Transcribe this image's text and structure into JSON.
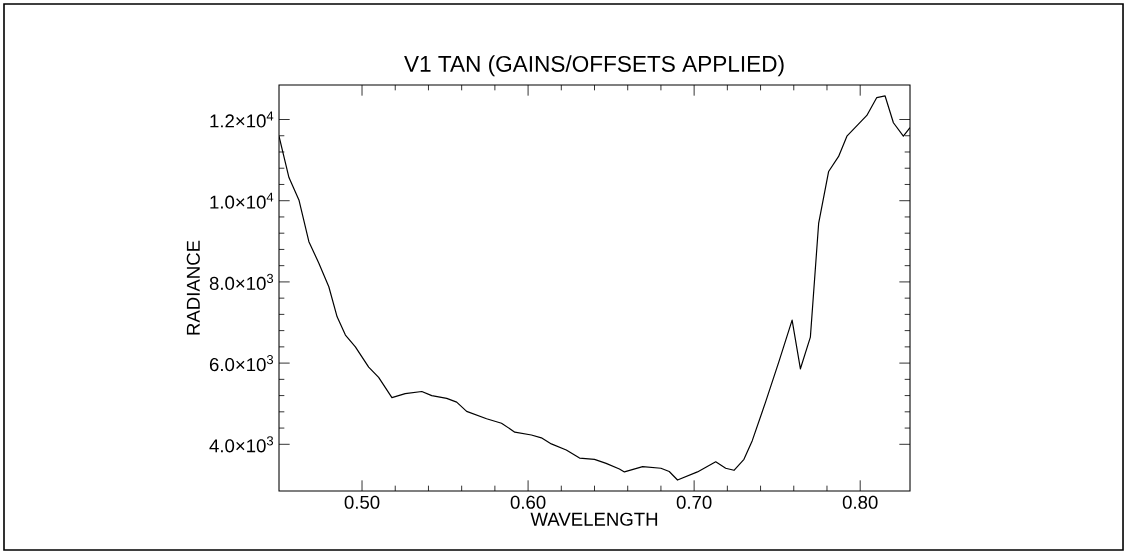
{
  "chart_data": {
    "type": "line",
    "title": "V1 TAN (GAINS/OFFSETS APPLIED)",
    "xlabel": "WAVELENGTH",
    "ylabel": "RADIANCE",
    "color": "#000000",
    "marker": "none",
    "line_style": "solid",
    "x": [
      0.45,
      0.456,
      0.462,
      0.468,
      0.474,
      0.48,
      0.485,
      0.49,
      0.496,
      0.504,
      0.51,
      0.518,
      0.526,
      0.536,
      0.542,
      0.551,
      0.557,
      0.563,
      0.575,
      0.584,
      0.592,
      0.602,
      0.608,
      0.614,
      0.623,
      0.631,
      0.64,
      0.647,
      0.655,
      0.658,
      0.669,
      0.68,
      0.685,
      0.69,
      0.702,
      0.713,
      0.719,
      0.724,
      0.73,
      0.735,
      0.743,
      0.751,
      0.759,
      0.764,
      0.77,
      0.775,
      0.781,
      0.787,
      0.792,
      0.804,
      0.81,
      0.815,
      0.82,
      0.826,
      0.83
    ],
    "values": [
      11590,
      10570,
      10020,
      8990,
      8460,
      7880,
      7140,
      6690,
      6400,
      5900,
      5650,
      5150,
      5250,
      5300,
      5200,
      5130,
      5040,
      4810,
      4630,
      4520,
      4300,
      4230,
      4160,
      4010,
      3860,
      3660,
      3630,
      3530,
      3390,
      3320,
      3450,
      3410,
      3330,
      3120,
      3320,
      3570,
      3410,
      3360,
      3630,
      4090,
      5040,
      6030,
      7060,
      5860,
      6640,
      9450,
      10720,
      11090,
      11590,
      12100,
      12540,
      12580,
      11920,
      11590,
      11800
    ],
    "xlim": [
      0.45,
      0.83
    ],
    "ylim": [
      2850,
      12850
    ],
    "xticks": [
      {
        "value": 0.5,
        "label": "0.50"
      },
      {
        "value": 0.6,
        "label": "0.60"
      },
      {
        "value": 0.7,
        "label": "0.70"
      },
      {
        "value": 0.8,
        "label": "0.80"
      }
    ],
    "yticks": [
      {
        "value": 4000,
        "label": "4.0×10$^{3}$"
      },
      {
        "value": 6000,
        "label": "6.0×10$^{3}$"
      },
      {
        "value": 8000,
        "label": "8.0×10$^{3}$"
      },
      {
        "value": 10000,
        "label": "1.0×10$^{4}$"
      },
      {
        "value": 12000,
        "label": "1.2×10$^{4}$"
      }
    ]
  }
}
